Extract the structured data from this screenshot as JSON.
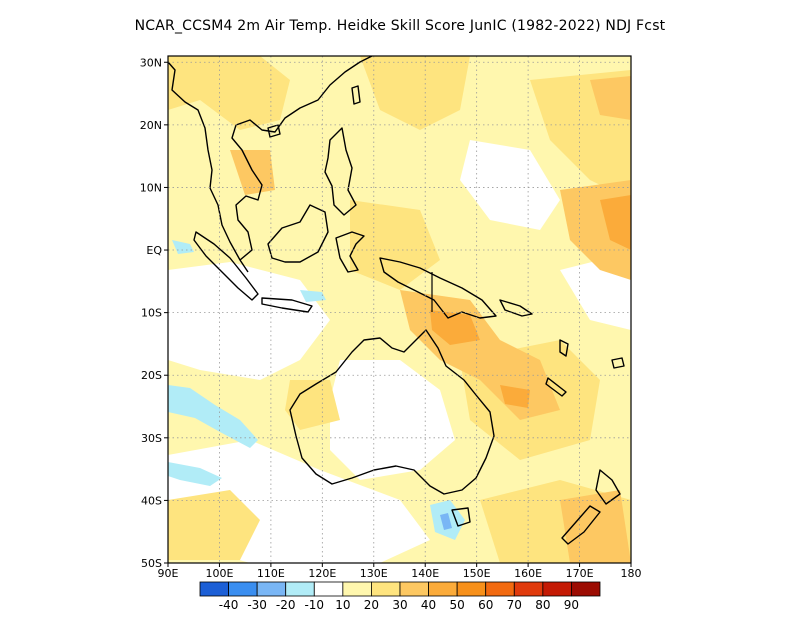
{
  "title": "NCAR_CCSM4  2m Air Temp. Heidke Skill Score JunIC (1982-2022) NDJ Fcst",
  "map": {
    "lon_range": [
      90,
      180
    ],
    "lat_range": [
      -50,
      31
    ],
    "lon_ticks": [
      {
        "value": 90,
        "label": "90E"
      },
      {
        "value": 100,
        "label": "100E"
      },
      {
        "value": 110,
        "label": "110E"
      },
      {
        "value": 120,
        "label": "120E"
      },
      {
        "value": 130,
        "label": "130E"
      },
      {
        "value": 140,
        "label": "140E"
      },
      {
        "value": 150,
        "label": "150E"
      },
      {
        "value": 160,
        "label": "160E"
      },
      {
        "value": 170,
        "label": "170E"
      },
      {
        "value": 180,
        "label": "180"
      }
    ],
    "lat_ticks": [
      {
        "value": 30,
        "label": "30N"
      },
      {
        "value": 20,
        "label": "20N"
      },
      {
        "value": 10,
        "label": "10N"
      },
      {
        "value": 0,
        "label": "EQ"
      },
      {
        "value": -10,
        "label": "10S"
      },
      {
        "value": -20,
        "label": "20S"
      },
      {
        "value": -30,
        "label": "30S"
      },
      {
        "value": -40,
        "label": "40S"
      },
      {
        "value": -50,
        "label": "50S"
      }
    ],
    "grid": "dotted"
  },
  "colorbar": {
    "colors": [
      "#1c5fd6",
      "#3a8ef0",
      "#79b6f5",
      "#b1ecf7",
      "#ffffff",
      "#fff7ae",
      "#fee47f",
      "#fdc862",
      "#fbab3a",
      "#f7901a",
      "#f26a10",
      "#e03a0c",
      "#c41a04",
      "#9c0c02"
    ],
    "labels": [
      "-40",
      "-30",
      "-20",
      "-10",
      "10",
      "20",
      "30",
      "40",
      "50",
      "60",
      "70",
      "80",
      "90"
    ]
  }
}
